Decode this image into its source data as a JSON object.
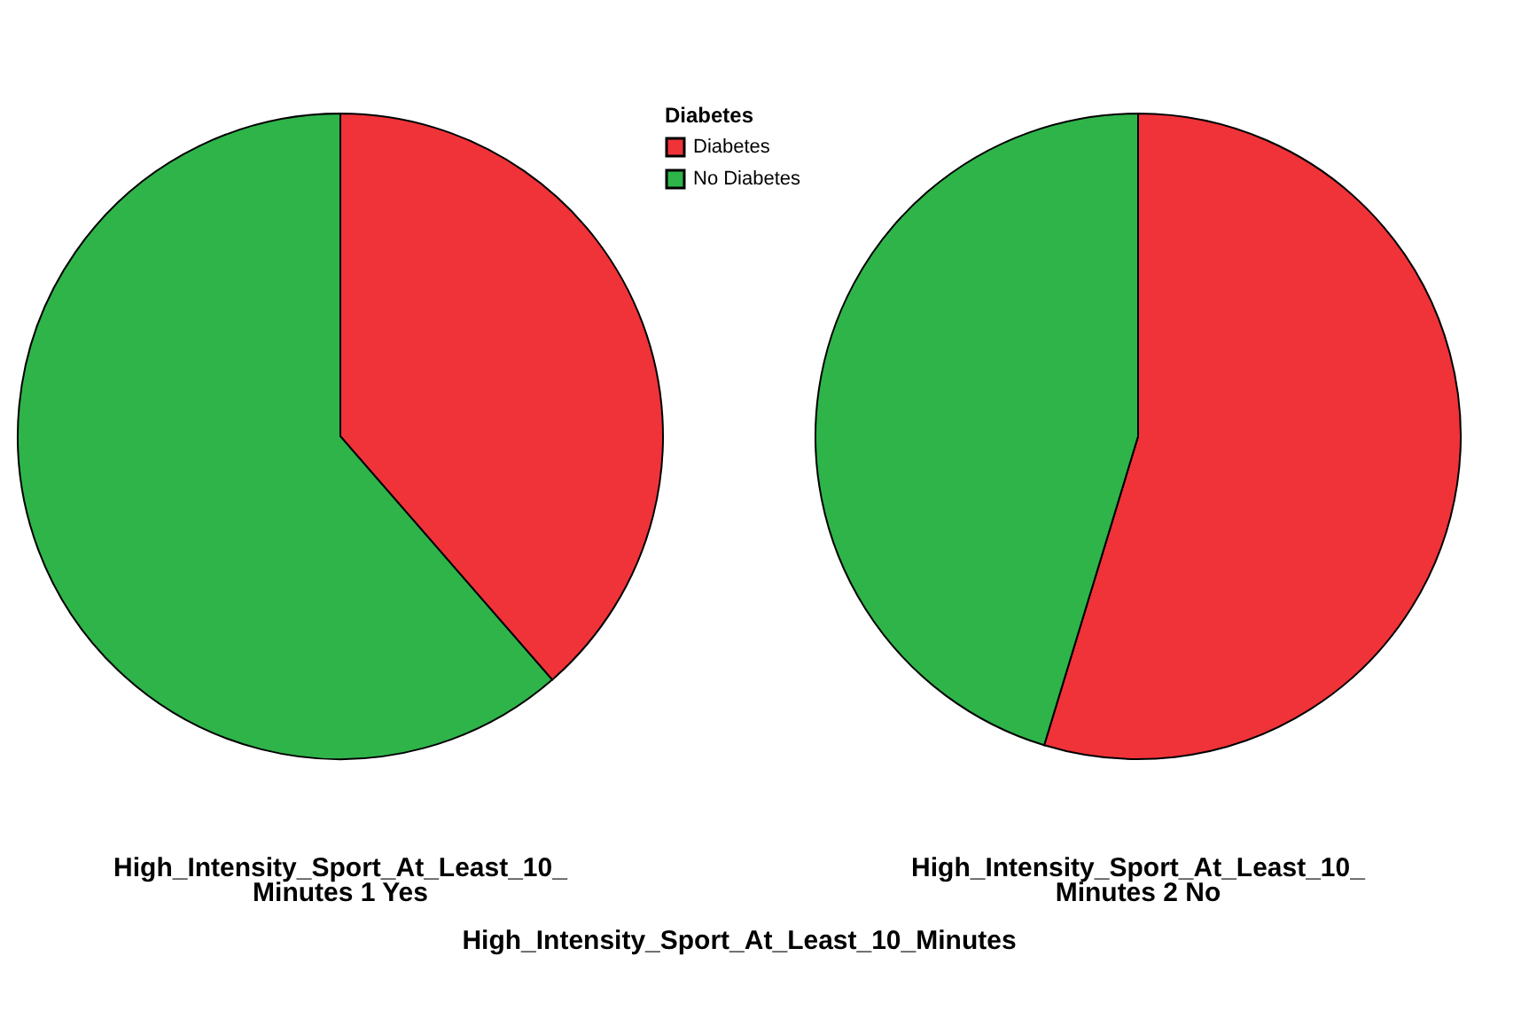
{
  "chart_data": [
    {
      "type": "pie",
      "title": "High_Intensity_Sport_At_Least_10_ Minutes 1 Yes",
      "categories": [
        "Diabetes",
        "No Diabetes"
      ],
      "values": [
        38.6,
        61.4
      ],
      "colors": [
        "#ef3339",
        "#2fb44a"
      ],
      "legend": "top right",
      "legend_title": "Diabetes",
      "annotations": [
        "High_Intensity_Sport_At_Least_10_Minutes"
      ]
    },
    {
      "type": "pie",
      "title": "High_Intensity_Sport_At_Least_10_ Minutes 2 No",
      "categories": [
        null,
        null
      ],
      "values": [
        54.7,
        45.3
      ],
      "colors": [
        "#ef3339",
        "#2fb44a"
      ]
    }
  ]
}
